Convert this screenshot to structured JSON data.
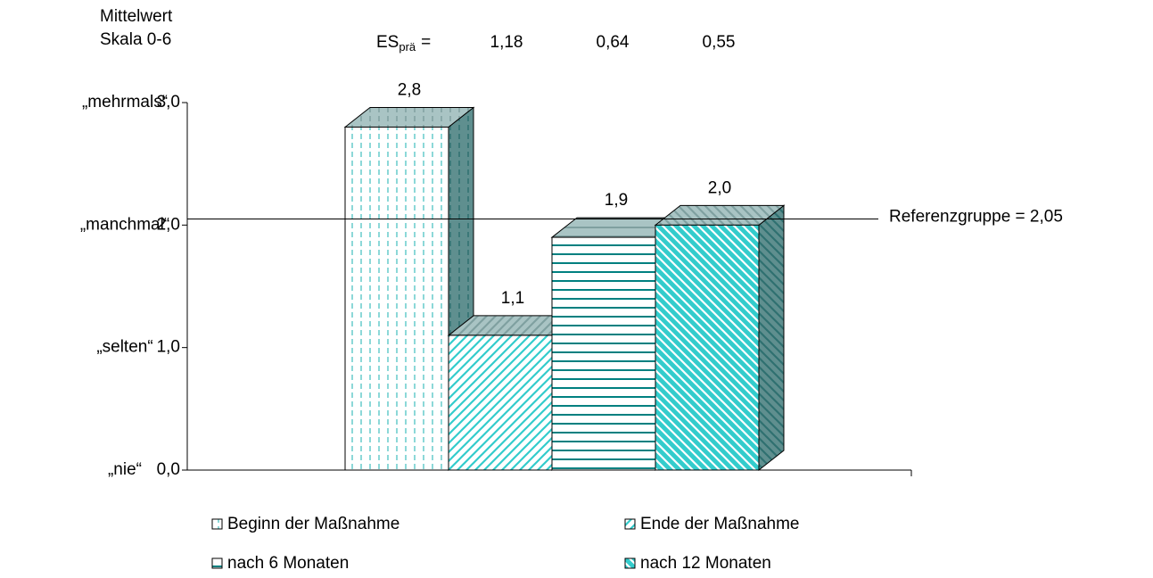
{
  "chart_data": {
    "type": "bar3d",
    "axis_title_lines": [
      "Mittelwert",
      "Skala 0-6"
    ],
    "es": {
      "label": "ES",
      "sub": "prä",
      "eq": "=",
      "values": [
        "1,18",
        "0,64",
        "0,55"
      ]
    },
    "scale_words": [
      "„mehrmals“",
      "„manchmal“",
      "„selten“",
      "„nie“"
    ],
    "ylim": [
      0,
      3
    ],
    "yticks": [
      {
        "value": 0,
        "label": "0,0"
      },
      {
        "value": 1,
        "label": "1,0"
      },
      {
        "value": 2,
        "label": "2,0"
      },
      {
        "value": 3,
        "label": "3,0"
      }
    ],
    "reference": {
      "value": 2.05,
      "label": "Referenzgruppe = 2,05"
    },
    "series": [
      {
        "name": "Beginn der Maßnahme",
        "color": "#66cccc",
        "pattern": "dashed-vertical",
        "values": [
          2.8
        ],
        "value_labels": [
          "2,8"
        ]
      },
      {
        "name": "Ende der Maßnahme",
        "color": "#33cccc",
        "pattern": "diagonal-up",
        "values": [
          1.1
        ],
        "value_labels": [
          "1,1"
        ]
      },
      {
        "name": "nach 6 Monaten",
        "color": "#008080",
        "pattern": "horizontal",
        "values": [
          1.9
        ],
        "value_labels": [
          "1,9"
        ]
      },
      {
        "name": "nach 12 Monaten",
        "color": "#33cccc",
        "pattern": "diagonal-down",
        "values": [
          2.0
        ],
        "value_labels": [
          "2,0"
        ]
      }
    ]
  }
}
